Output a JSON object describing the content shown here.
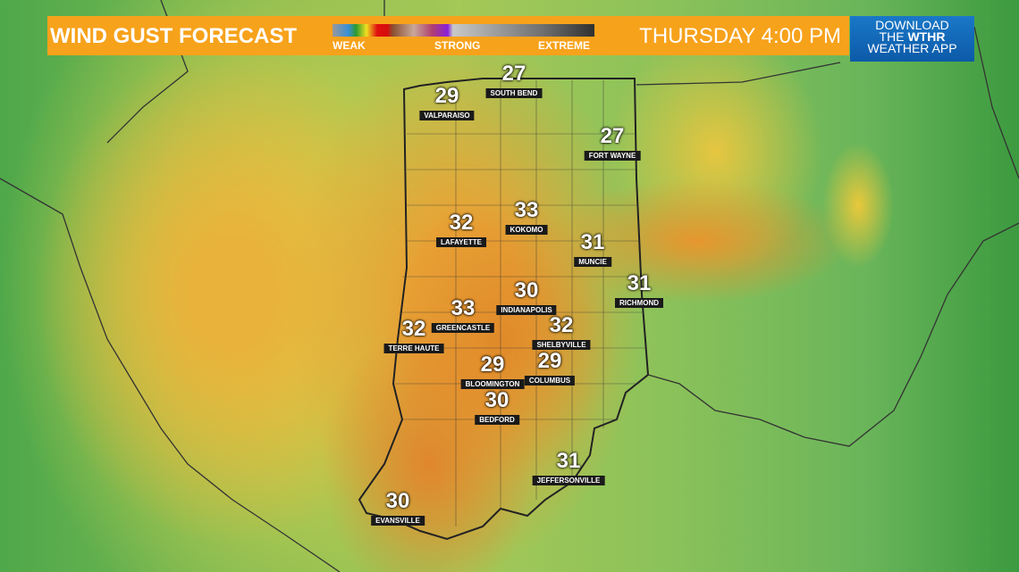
{
  "header": {
    "title": "WIND GUST FORECAST",
    "legend": {
      "weak": "WEAK",
      "strong": "STRONG",
      "extreme": "EXTREME"
    },
    "datetime": "THURSDAY 4:00 PM"
  },
  "promo": {
    "line1": "DOWNLOAD",
    "line2_pre": "THE ",
    "line2_brand": "WTHR",
    "line3": "WEATHER APP"
  },
  "colors": {
    "header": "#f7a21b",
    "promo": "#1a78c8"
  },
  "cities": [
    {
      "name": "SOUTH BEND",
      "gust": "27"
    },
    {
      "name": "VALPARAISO",
      "gust": "29"
    },
    {
      "name": "FORT WAYNE",
      "gust": "27"
    },
    {
      "name": "LAFAYETTE",
      "gust": "32"
    },
    {
      "name": "KOKOMO",
      "gust": "33"
    },
    {
      "name": "MUNCIE",
      "gust": "31"
    },
    {
      "name": "RICHMOND",
      "gust": "31"
    },
    {
      "name": "INDIANAPOLIS",
      "gust": "30"
    },
    {
      "name": "GREENCASTLE",
      "gust": "33"
    },
    {
      "name": "TERRE HAUTE",
      "gust": "32"
    },
    {
      "name": "SHELBYVILLE",
      "gust": "32"
    },
    {
      "name": "BLOOMINGTON",
      "gust": "29"
    },
    {
      "name": "COLUMBUS",
      "gust": "29"
    },
    {
      "name": "BEDFORD",
      "gust": "30"
    },
    {
      "name": "JEFFERSONVILLE",
      "gust": "31"
    },
    {
      "name": "EVANSVILLE",
      "gust": "30"
    }
  ]
}
